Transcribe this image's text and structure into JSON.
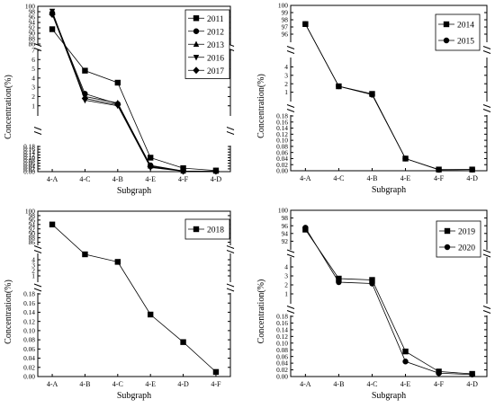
{
  "chart_data": [
    {
      "type": "line",
      "xlabel": "Subgraph",
      "ylabel": "Concentration(%)",
      "categories": [
        "4-A",
        "4-C",
        "4-B",
        "4-E",
        "4-F",
        "4-D"
      ],
      "axis_breaks": true,
      "segments": [
        {
          "ylim": [
            0,
            0.18
          ],
          "ticks": [
            "0.00",
            "0.02",
            "0.04",
            "0.06",
            "0.08",
            "0.10",
            "0.12",
            "0.14",
            "0.16",
            "0.18"
          ]
        },
        {
          "ylim": [
            0,
            7
          ],
          "ticks": [
            "1",
            "2",
            "3",
            "4",
            "5",
            "6",
            "7"
          ]
        },
        {
          "ylim": [
            86,
            100
          ],
          "ticks": [
            "86",
            "88",
            "90",
            "92",
            "94",
            "96",
            "98",
            "100"
          ]
        }
      ],
      "legend_position": "top-right",
      "series": [
        {
          "name": "2011",
          "marker": "square",
          "values": [
            91.5,
            4.8,
            3.5,
            0.1,
            0.025,
            0.008
          ]
        },
        {
          "name": "2012",
          "marker": "circle",
          "values": [
            97.5,
            2.3,
            1.2,
            0.045,
            0.005,
            0.004
          ]
        },
        {
          "name": "2013",
          "marker": "triangle-up",
          "values": [
            97.8,
            2.0,
            1.3,
            0.04,
            0.004,
            0.003
          ]
        },
        {
          "name": "2016",
          "marker": "triangle-down",
          "values": [
            98.2,
            1.6,
            1.0,
            0.03,
            0.003,
            0.003
          ]
        },
        {
          "name": "2017",
          "marker": "diamond",
          "values": [
            97.0,
            1.8,
            1.1,
            0.035,
            0.004,
            0.004
          ]
        }
      ]
    },
    {
      "type": "line",
      "xlabel": "Subgraph",
      "ylabel": "Concentration(%)",
      "categories": [
        "4-A",
        "4-C",
        "4-B",
        "4-E",
        "4-F",
        "4-D"
      ],
      "axis_breaks": true,
      "segments": [
        {
          "ylim": [
            0,
            0.18
          ],
          "ticks": [
            "0.00",
            "0.02",
            "0.04",
            "0.06",
            "0.08",
            "0.10",
            "0.12",
            "0.14",
            "0.16",
            "0.18"
          ]
        },
        {
          "ylim": [
            0,
            5
          ],
          "ticks": [
            "1",
            "2",
            "3",
            "4"
          ]
        },
        {
          "ylim": [
            95,
            100
          ],
          "ticks": [
            "96",
            "97",
            "98",
            "99",
            "100"
          ]
        }
      ],
      "legend_position": "top-right",
      "series": [
        {
          "name": "2014",
          "marker": "square",
          "values": [
            97.4,
            1.7,
            0.8,
            0.04,
            0.004,
            0.004
          ]
        },
        {
          "name": "2015",
          "marker": "circle",
          "values": [
            97.4,
            1.7,
            0.7,
            0.04,
            0.003,
            0.004
          ]
        }
      ]
    },
    {
      "type": "line",
      "xlabel": "Subgraph",
      "ylabel": "Concentration(%)",
      "categories": [
        "4-A",
        "4-B",
        "4-C",
        "4-E",
        "4-D",
        "4-F"
      ],
      "axis_breaks": true,
      "segments": [
        {
          "ylim": [
            0,
            0.18
          ],
          "ticks": [
            "0.00",
            "0.02",
            "0.04",
            "0.06",
            "0.08",
            "0.10",
            "0.12",
            "0.14",
            "0.16",
            "0.18"
          ]
        },
        {
          "ylim": [
            0,
            5
          ],
          "ticks": [
            "1",
            "2",
            "3",
            "4"
          ]
        },
        {
          "ylim": [
            85,
            100
          ],
          "ticks": [
            "86",
            "88",
            "90",
            "92",
            "94",
            "96",
            "98",
            "100"
          ]
        }
      ],
      "legend_position": "top-right",
      "series": [
        {
          "name": "2018",
          "marker": "square",
          "values": [
            94.0,
            5.0,
            3.6,
            0.135,
            0.075,
            0.01
          ]
        }
      ]
    },
    {
      "type": "line",
      "xlabel": "Subgraph",
      "ylabel": "Concentration(%)",
      "categories": [
        "4-A",
        "4-B",
        "4-C",
        "4-E",
        "4-F",
        "4-D"
      ],
      "axis_breaks": true,
      "segments": [
        {
          "ylim": [
            0,
            0.18
          ],
          "ticks": [
            "0.00",
            "0.02",
            "0.04",
            "0.06",
            "0.08",
            "0.10",
            "0.12",
            "0.14",
            "0.16",
            "0.18"
          ]
        },
        {
          "ylim": [
            0,
            5
          ],
          "ticks": [
            "1",
            "2",
            "3",
            "4"
          ]
        },
        {
          "ylim": [
            90,
            100
          ],
          "ticks": [
            "92",
            "94",
            "96",
            "98",
            "100"
          ]
        }
      ],
      "legend_position": "top-right",
      "series": [
        {
          "name": "2019",
          "marker": "square",
          "values": [
            95.0,
            2.7,
            2.55,
            0.075,
            0.015,
            0.008
          ]
        },
        {
          "name": "2020",
          "marker": "circle",
          "values": [
            95.5,
            2.3,
            2.15,
            0.045,
            0.01,
            0.006
          ]
        }
      ]
    }
  ]
}
